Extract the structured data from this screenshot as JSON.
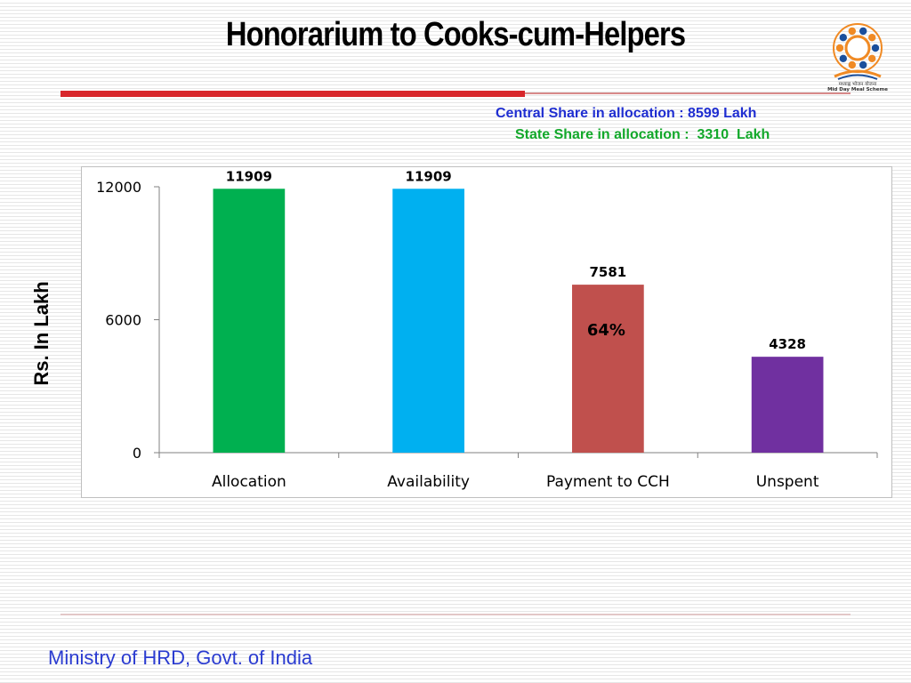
{
  "slide": {
    "title": "Honorarium to Cooks-cum-Helpers",
    "central_share": "Central Share in allocation : 8599 Lakh",
    "state_share": "State Share in allocation :  3310  Lakh",
    "footer": "Ministry of HRD, Govt. of India",
    "logo_icon": "mid-day-meal-scheme-logo-icon",
    "logo_text": [
      "मध्याह्न भोजन योजना",
      "Mid Day Meal Scheme"
    ]
  },
  "chart_data": {
    "type": "bar",
    "title": "",
    "xlabel": "",
    "ylabel": "Rs. In Lakh",
    "categories": [
      "Allocation",
      "Availability",
      "Payment to CCH",
      "Unspent"
    ],
    "values": [
      11909,
      11909,
      7581,
      4328
    ],
    "data_labels": [
      "11909",
      "11909",
      "7581",
      "4328"
    ],
    "bar_colors": [
      "#00b050",
      "#00b0f0",
      "#c0504d",
      "#7030a0"
    ],
    "annotations": [
      {
        "category": "Payment to CCH",
        "text": "64%"
      }
    ],
    "ylim": [
      0,
      12000
    ],
    "yticks": [
      0,
      6000,
      12000
    ],
    "ytick_labels": [
      "0",
      "6000",
      "12000"
    ],
    "grid": false,
    "legend": "none"
  }
}
